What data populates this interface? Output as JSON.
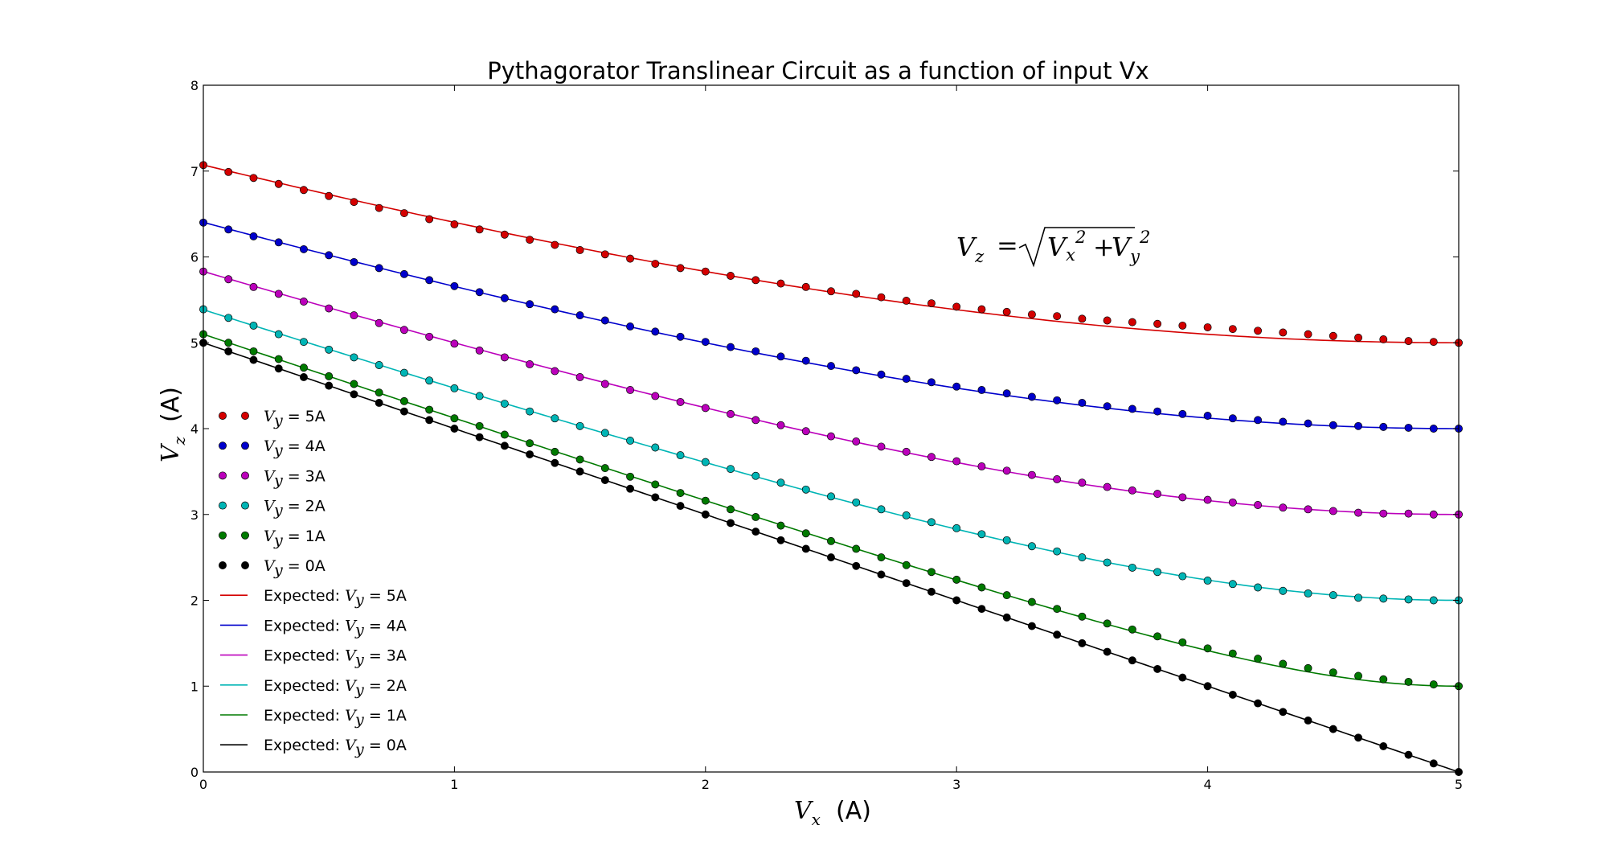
{
  "chart_data": {
    "type": "line",
    "title": "Pythagorator Translinear Circuit as a function of input Vx",
    "xlabel": "V_x (A)",
    "ylabel": "V_z (A)",
    "xlim": [
      0,
      5
    ],
    "ylim": [
      0,
      8
    ],
    "xticks": [
      "0",
      "1",
      "2",
      "3",
      "4",
      "5"
    ],
    "yticks": [
      "0",
      "1",
      "2",
      "3",
      "4",
      "5",
      "6",
      "7",
      "8"
    ],
    "grid": false,
    "legend_position": "left",
    "annotation": "V_z = sqrt(V_x^2 + V_y^2)",
    "x": [
      0,
      0.1,
      0.2,
      0.3,
      0.4,
      0.5,
      0.6,
      0.7,
      0.8,
      0.9,
      1.0,
      1.1,
      1.2,
      1.3,
      1.4,
      1.5,
      1.6,
      1.7,
      1.8,
      1.9,
      2.0,
      2.1,
      2.2,
      2.3,
      2.4,
      2.5,
      2.6,
      2.7,
      2.8,
      2.9,
      3.0,
      3.1,
      3.2,
      3.3,
      3.4,
      3.5,
      3.6,
      3.7,
      3.8,
      3.9,
      4.0,
      4.1,
      4.2,
      4.3,
      4.4,
      4.5,
      4.6,
      4.7,
      4.8,
      4.9,
      5.0
    ],
    "series": [
      {
        "name": "V_y = 5A",
        "kind": "measured",
        "color": "#d40000",
        "values": [
          7.07,
          6.99,
          6.92,
          6.85,
          6.78,
          6.71,
          6.64,
          6.57,
          6.51,
          6.44,
          6.38,
          6.32,
          6.26,
          6.2,
          6.14,
          6.08,
          6.03,
          5.98,
          5.92,
          5.87,
          5.83,
          5.78,
          5.73,
          5.69,
          5.65,
          5.6,
          5.57,
          5.53,
          5.49,
          5.46,
          5.42,
          5.39,
          5.36,
          5.33,
          5.31,
          5.28,
          5.26,
          5.24,
          5.22,
          5.2,
          5.18,
          5.16,
          5.14,
          5.12,
          5.1,
          5.08,
          5.06,
          5.04,
          5.02,
          5.01,
          5.0
        ]
      },
      {
        "name": "V_y = 4A",
        "kind": "measured",
        "color": "#0000cc",
        "values": [
          6.4,
          6.32,
          6.24,
          6.17,
          6.09,
          6.02,
          5.94,
          5.87,
          5.8,
          5.73,
          5.66,
          5.59,
          5.52,
          5.45,
          5.39,
          5.32,
          5.26,
          5.19,
          5.13,
          5.07,
          5.01,
          4.95,
          4.9,
          4.84,
          4.79,
          4.73,
          4.68,
          4.63,
          4.58,
          4.54,
          4.49,
          4.45,
          4.41,
          4.37,
          4.33,
          4.3,
          4.26,
          4.23,
          4.2,
          4.17,
          4.15,
          4.12,
          4.1,
          4.08,
          4.06,
          4.04,
          4.03,
          4.02,
          4.01,
          4.0,
          4.0
        ]
      },
      {
        "name": "V_y = 3A",
        "kind": "measured",
        "color": "#bb00bb",
        "values": [
          5.83,
          5.74,
          5.65,
          5.57,
          5.48,
          5.4,
          5.32,
          5.23,
          5.15,
          5.07,
          4.99,
          4.91,
          4.83,
          4.75,
          4.67,
          4.6,
          4.52,
          4.45,
          4.38,
          4.31,
          4.24,
          4.17,
          4.1,
          4.04,
          3.97,
          3.91,
          3.85,
          3.79,
          3.73,
          3.67,
          3.62,
          3.56,
          3.51,
          3.46,
          3.41,
          3.37,
          3.32,
          3.28,
          3.24,
          3.2,
          3.17,
          3.14,
          3.11,
          3.08,
          3.06,
          3.04,
          3.02,
          3.01,
          3.01,
          3.0,
          3.0
        ]
      },
      {
        "name": "V_y = 2A",
        "kind": "measured",
        "color": "#00b5b5",
        "values": [
          5.39,
          5.29,
          5.2,
          5.1,
          5.01,
          4.92,
          4.83,
          4.74,
          4.65,
          4.56,
          4.47,
          4.38,
          4.29,
          4.2,
          4.12,
          4.03,
          3.95,
          3.86,
          3.78,
          3.69,
          3.61,
          3.53,
          3.45,
          3.37,
          3.29,
          3.21,
          3.14,
          3.06,
          2.99,
          2.91,
          2.84,
          2.77,
          2.7,
          2.63,
          2.57,
          2.5,
          2.44,
          2.38,
          2.33,
          2.28,
          2.23,
          2.19,
          2.15,
          2.11,
          2.08,
          2.06,
          2.03,
          2.02,
          2.01,
          2.0,
          2.0
        ]
      },
      {
        "name": "V_y = 1A",
        "kind": "measured",
        "color": "#007a00",
        "values": [
          5.1,
          5.0,
          4.9,
          4.81,
          4.71,
          4.61,
          4.52,
          4.42,
          4.32,
          4.22,
          4.12,
          4.03,
          3.93,
          3.83,
          3.73,
          3.64,
          3.54,
          3.44,
          3.35,
          3.25,
          3.16,
          3.06,
          2.97,
          2.87,
          2.78,
          2.69,
          2.6,
          2.5,
          2.41,
          2.33,
          2.24,
          2.15,
          2.06,
          1.98,
          1.9,
          1.81,
          1.73,
          1.66,
          1.58,
          1.51,
          1.44,
          1.38,
          1.32,
          1.26,
          1.21,
          1.16,
          1.12,
          1.08,
          1.05,
          1.02,
          1.0
        ]
      },
      {
        "name": "V_y = 0A",
        "kind": "measured",
        "color": "#000000",
        "values": [
          5.0,
          4.9,
          4.8,
          4.7,
          4.6,
          4.5,
          4.4,
          4.3,
          4.2,
          4.1,
          4.0,
          3.9,
          3.8,
          3.7,
          3.6,
          3.5,
          3.4,
          3.3,
          3.2,
          3.1,
          3.0,
          2.9,
          2.8,
          2.7,
          2.6,
          2.5,
          2.4,
          2.3,
          2.2,
          2.1,
          2.0,
          1.9,
          1.8,
          1.7,
          1.6,
          1.5,
          1.4,
          1.3,
          1.2,
          1.1,
          1.0,
          0.9,
          0.8,
          0.7,
          0.6,
          0.5,
          0.4,
          0.3,
          0.2,
          0.1,
          0.0
        ]
      }
    ],
    "expected": [
      {
        "name": "Expected: V_y = 5A",
        "kind": "expected",
        "color": "#d40000",
        "vy": 5
      },
      {
        "name": "Expected: V_y = 4A",
        "kind": "expected",
        "color": "#0000cc",
        "vy": 4
      },
      {
        "name": "Expected: V_y = 3A",
        "kind": "expected",
        "color": "#bb00bb",
        "vy": 3
      },
      {
        "name": "Expected: V_y = 2A",
        "kind": "expected",
        "color": "#00b5b5",
        "vy": 2
      },
      {
        "name": "Expected: V_y = 1A",
        "kind": "expected",
        "color": "#007a00",
        "vy": 1
      },
      {
        "name": "Expected: V_y = 0A",
        "kind": "expected",
        "color": "#000000",
        "vy": 0
      }
    ]
  }
}
